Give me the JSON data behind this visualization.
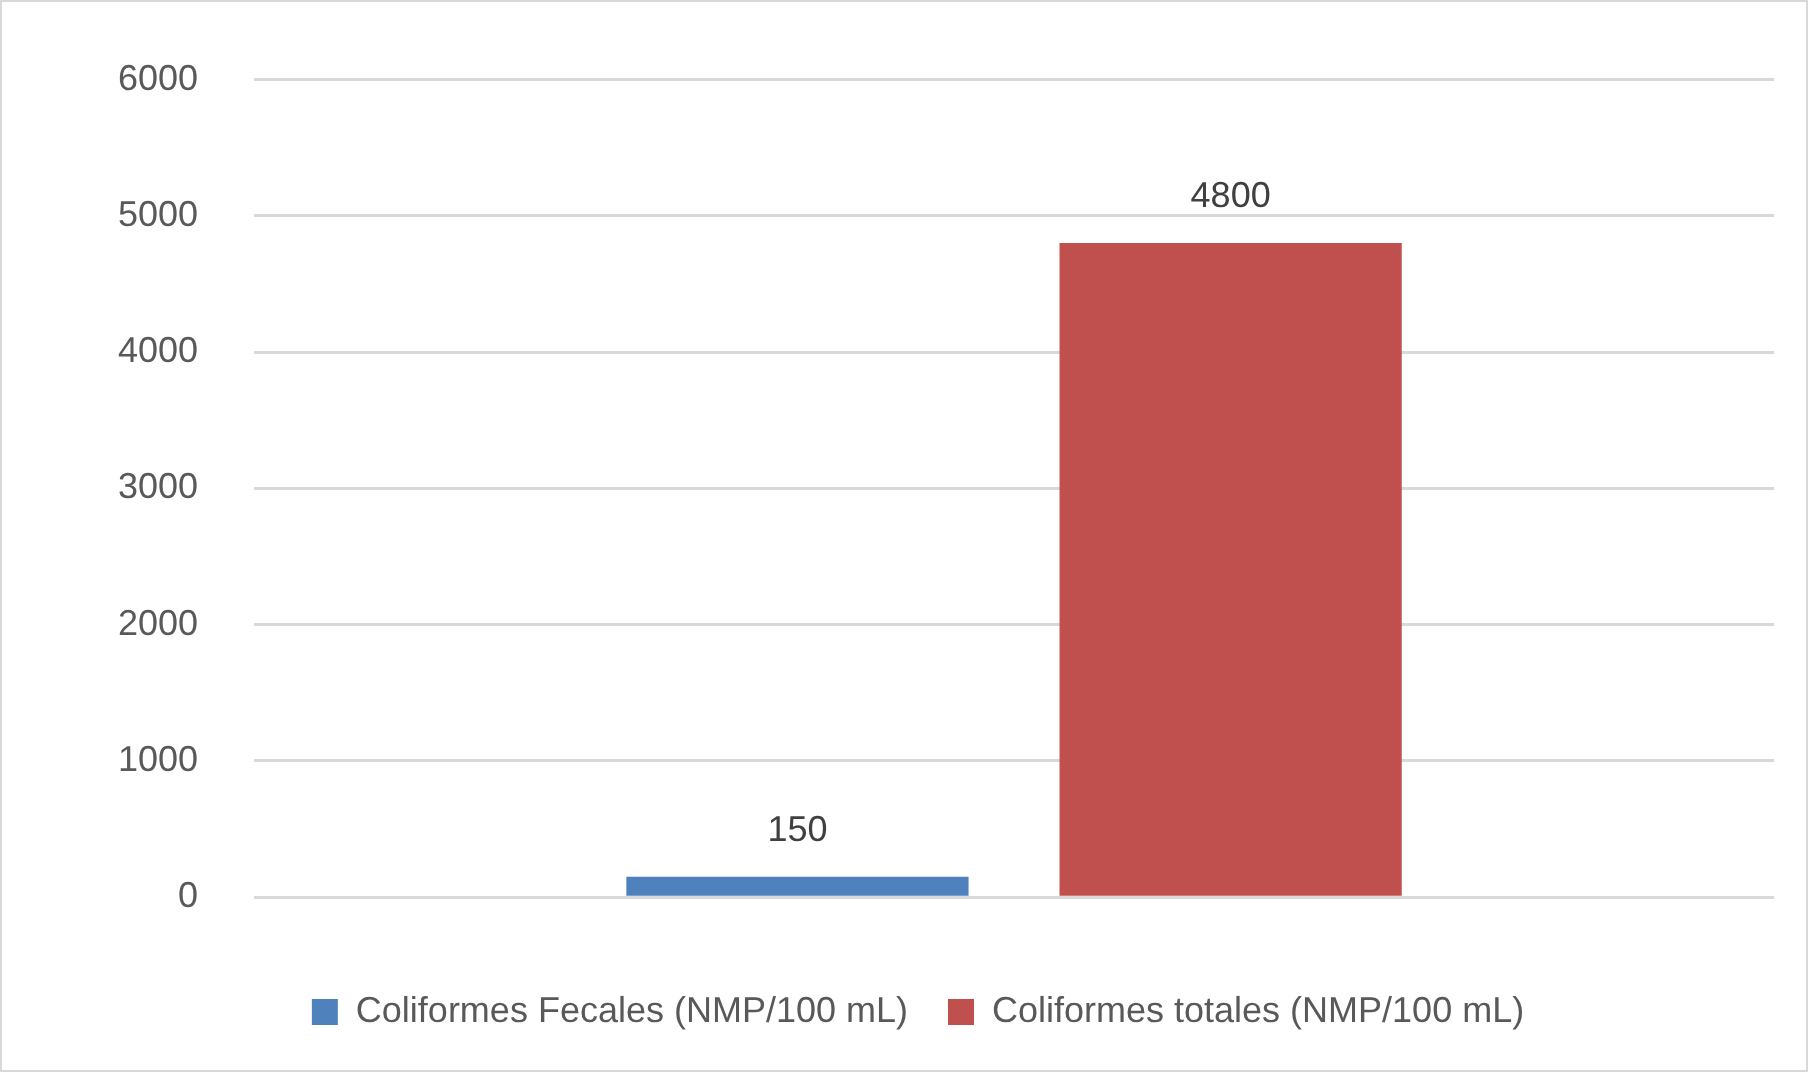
{
  "chart_data": {
    "type": "bar",
    "categories": [
      null
    ],
    "series": [
      {
        "name": "Coliformes Fecales (NMP/100 mL)",
        "color": "#4f81bd",
        "values": [
          150
        ]
      },
      {
        "name": "Coliformes totales (NMP/100 mL)",
        "color": "#c0504d",
        "values": [
          4800
        ]
      }
    ],
    "ylim": [
      0,
      6000
    ],
    "yticks": [
      0,
      1000,
      2000,
      3000,
      4000,
      5000,
      6000
    ],
    "grid": "y",
    "legend": "bottom",
    "data_labels": true
  }
}
